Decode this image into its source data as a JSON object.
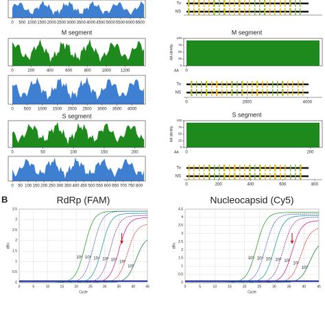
{
  "panel_label": "B",
  "left_panels": [
    {
      "xlim": [
        0,
        6700
      ],
      "xticks": [
        0,
        500,
        1000,
        1500,
        2000,
        2500,
        3000,
        3500,
        4000,
        4500,
        5000,
        5500,
        6000,
        6500
      ],
      "color": "#3f7fd1"
    },
    {
      "title": "M segment",
      "xlim": [
        0,
        1400
      ],
      "xticks": [
        0,
        200,
        400,
        600,
        800,
        1000,
        1200
      ],
      "color": "#1e8a1e"
    },
    {
      "xlim": [
        0,
        4400
      ],
      "xticks": [
        0,
        500,
        1000,
        1500,
        2000,
        2500,
        3000,
        3500,
        4000
      ],
      "color": "#3f7fd1"
    },
    {
      "title": "S segment",
      "xlim": [
        0,
        215
      ],
      "xticks": [
        0,
        50,
        100,
        150,
        200
      ],
      "color": "#1e8a1e"
    },
    {
      "xlim": [
        0,
        830
      ],
      "xticks": [
        0,
        50,
        100,
        150,
        200,
        250,
        300,
        350,
        400,
        450,
        500,
        550,
        600,
        650,
        700,
        750,
        800
      ],
      "color": "#3f7fd1"
    }
  ],
  "right_panels": [
    {
      "kind": "strip",
      "rows": [
        "Tv",
        "NS"
      ],
      "xlim": [
        0,
        6700
      ],
      "xticks": []
    },
    {
      "kind": "identity",
      "title": "M segment",
      "ylabel": "AA identity",
      "xlabel": "AA",
      "ylim": [
        0,
        100
      ],
      "yticks": [
        0,
        25,
        50,
        75,
        100
      ],
      "xlim": [
        0,
        1400
      ],
      "xticks": [
        0
      ],
      "color": "#1e8a1e"
    },
    {
      "kind": "strip",
      "rows": [
        "Tv",
        "NS"
      ],
      "xlim": [
        0,
        4400
      ],
      "xticks": [
        0,
        2000,
        4000
      ]
    },
    {
      "kind": "identity",
      "title": "S segment",
      "ylabel": "AA identity",
      "xlabel": "AA",
      "ylim": [
        0,
        100
      ],
      "yticks": [
        0,
        25,
        50,
        75,
        100
      ],
      "xlim": [
        0,
        215
      ],
      "xticks": [
        0,
        200
      ],
      "color": "#1e8a1e"
    },
    {
      "kind": "strip",
      "rows": [
        "Tv",
        "NS"
      ],
      "xlim": [
        0,
        830
      ],
      "xticks": [
        0,
        200,
        400,
        600,
        800
      ]
    }
  ],
  "qpcr": [
    {
      "title": "RdRp (FAM)",
      "xlabel": "Cycle",
      "ylabel": "dRn",
      "xlim": [
        0,
        45
      ],
      "xticks": [
        0,
        5,
        10,
        15,
        20,
        25,
        30,
        35,
        40,
        45
      ],
      "ylim": [
        0,
        3.5
      ],
      "yticks": [
        0,
        0.5,
        1,
        1.5,
        2,
        2.5,
        3,
        3.5
      ],
      "curves": [
        {
          "label": "10⁶",
          "ct": 23,
          "plateau": 3.4,
          "color": "#2ca02c"
        },
        {
          "label": "10⁵",
          "ct": 26,
          "plateau": 3.4,
          "color": "#3050c0"
        },
        {
          "label": "10⁴",
          "ct": 29,
          "plateau": 3.3,
          "color": "#20a0a0"
        },
        {
          "label": "10³",
          "ct": 32,
          "plateau": 3.2,
          "color": "#7030a0"
        },
        {
          "label": "10²",
          "ct": 35,
          "plateau": 3.1,
          "color": "#d020a0"
        },
        {
          "label": "10¹",
          "ct": 38,
          "plateau": 2.8,
          "color": "#e02020"
        },
        {
          "label": "10⁰",
          "ct": 41,
          "plateau": 2.2,
          "color": "#208040"
        }
      ]
    },
    {
      "title": "Nucleocapsid (Cy5)",
      "xlabel": "Cycle",
      "ylabel": "dRn",
      "xlim": [
        0,
        45
      ],
      "xticks": [
        0,
        5,
        10,
        15,
        20,
        25,
        30,
        35,
        40,
        45
      ],
      "ylim": [
        0,
        4.5
      ],
      "yticks": [
        0,
        0.5,
        1,
        1.5,
        2,
        2.5,
        3,
        3.5,
        4,
        4.5
      ],
      "curves": [
        {
          "label": "10⁶",
          "ct": 24,
          "plateau": 4.3,
          "color": "#2ca02c"
        },
        {
          "label": "10⁵",
          "ct": 27,
          "plateau": 4.2,
          "color": "#3050c0"
        },
        {
          "label": "10⁴",
          "ct": 30,
          "plateau": 4.1,
          "color": "#20a0a0"
        },
        {
          "label": "10³",
          "ct": 33,
          "plateau": 4.0,
          "color": "#7030a0"
        },
        {
          "label": "10²",
          "ct": 36,
          "plateau": 3.8,
          "color": "#d020a0"
        },
        {
          "label": "10¹",
          "ct": 39,
          "plateau": 3.4,
          "color": "#e02020"
        },
        {
          "label": "10⁰",
          "ct": 42,
          "plateau": 2.6,
          "color": "#208040"
        }
      ]
    }
  ]
}
